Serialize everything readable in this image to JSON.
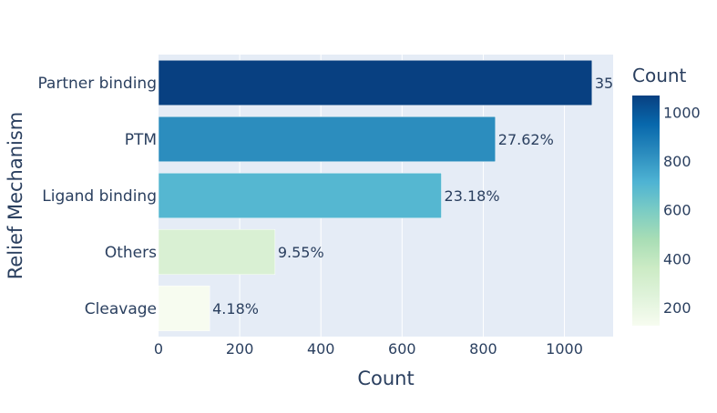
{
  "chart_data": {
    "type": "bar",
    "orientation": "horizontal",
    "categories": [
      "Partner binding",
      "PTM",
      "Ligand binding",
      "Others",
      "Cleavage"
    ],
    "values": [
      1068,
      830,
      697,
      287,
      126
    ],
    "data_labels": [
      "35",
      "27.62%",
      "23.18%",
      "9.55%",
      "4.18%"
    ],
    "xlabel": "Count",
    "ylabel": "Relief Mechanism",
    "xlim": [
      0,
      1120
    ],
    "xticks": [
      0,
      200,
      400,
      600,
      800,
      1000
    ],
    "grid": true,
    "colorbar": {
      "title": "Count",
      "range": [
        126,
        1068
      ],
      "ticks": [
        200,
        400,
        600,
        800,
        1000
      ],
      "colorscale": [
        "#f7fcf0",
        "#e0f3db",
        "#ccebc5",
        "#a8ddb5",
        "#7bccc4",
        "#4eb3d3",
        "#2b8cbe",
        "#0868ac",
        "#084081"
      ]
    }
  },
  "colors": {
    "plot_background": "#e5ecf6",
    "grid": "#ffffff",
    "text": "#2a3f5f"
  }
}
